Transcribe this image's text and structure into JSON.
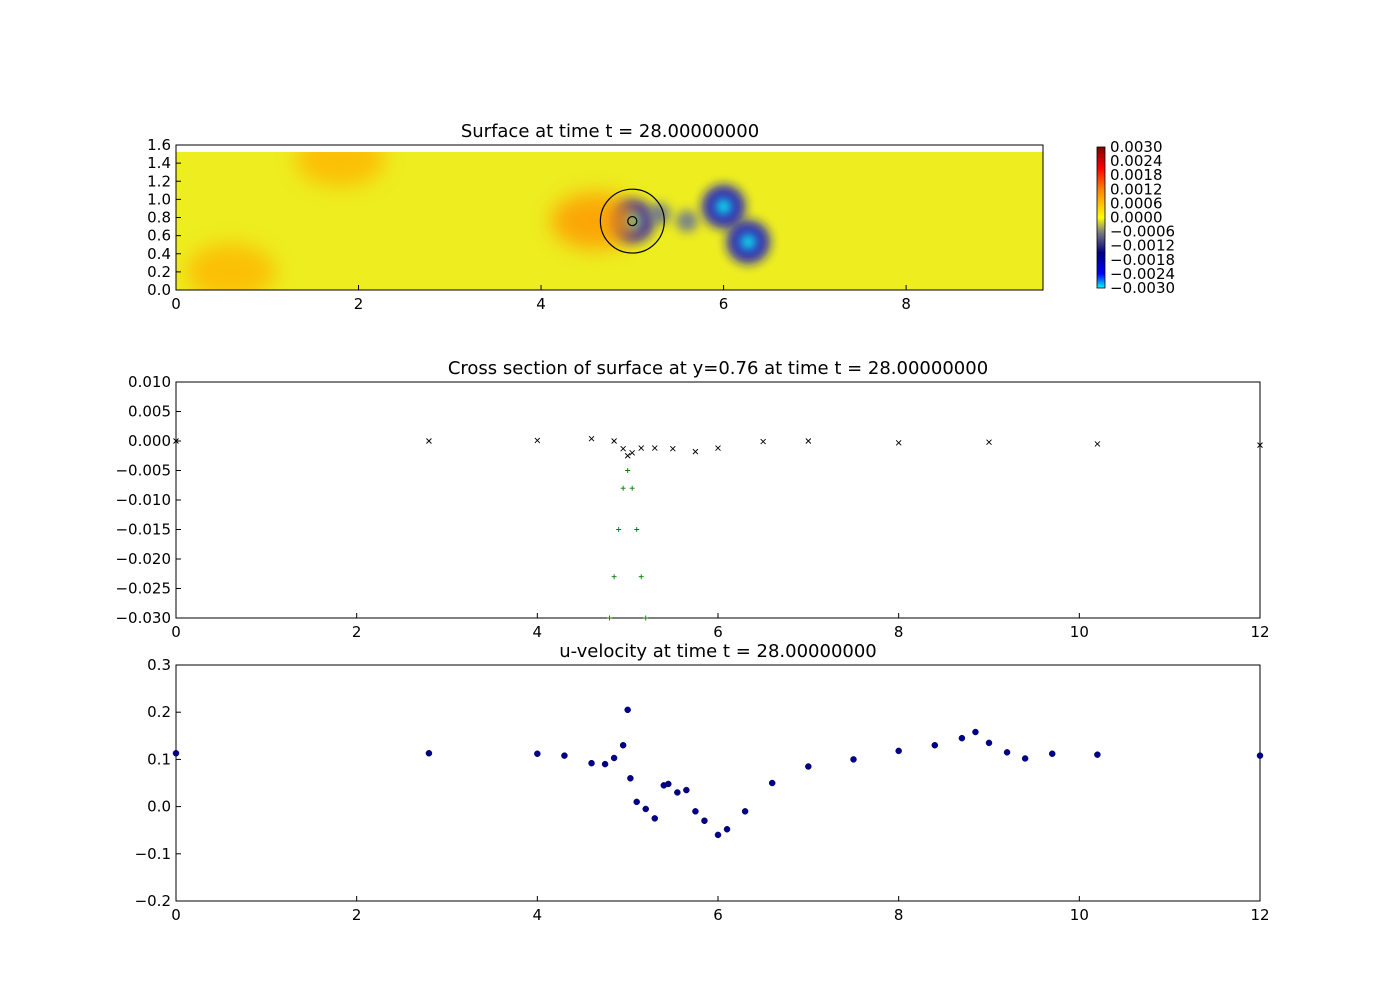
{
  "chart_data": [
    {
      "type": "heatmap",
      "title": "Surface at time t =    28.00000000",
      "xlabel": "",
      "ylabel": "",
      "xlim": [
        0,
        9.5
      ],
      "ylim": [
        0,
        1.6
      ],
      "data_extent_y": [
        0,
        1.52
      ],
      "xticks": [
        "0",
        "2",
        "4",
        "6",
        "8"
      ],
      "yticks": [
        "0.0",
        "0.2",
        "0.4",
        "0.6",
        "0.8",
        "1.0",
        "1.2",
        "1.4",
        "1.6"
      ],
      "color_range": [
        -0.003,
        0.003
      ],
      "colorbar_ticks": [
        "0.0030",
        "0.0024",
        "0.0018",
        "0.0012",
        "0.0006",
        "0.0000",
        "−0.0006",
        "−0.0012",
        "−0.0018",
        "−0.0024",
        "−0.0030"
      ],
      "features": [
        {
          "kind": "depression",
          "x": 6.0,
          "y": 0.92,
          "value": -0.003
        },
        {
          "kind": "depression",
          "x": 6.27,
          "y": 0.53,
          "value": -0.003
        },
        {
          "kind": "depression",
          "x": 5.0,
          "y": 0.76,
          "value": -0.003
        },
        {
          "kind": "depression",
          "x": 5.6,
          "y": 0.76,
          "value": -0.0015
        },
        {
          "kind": "depression",
          "x": 5.3,
          "y": 0.84,
          "value": -0.0012
        },
        {
          "kind": "elevation",
          "x": 4.6,
          "y": 0.76,
          "value": 0.001
        },
        {
          "kind": "elevation",
          "x": 1.8,
          "y": 1.45,
          "value": 0.0007
        },
        {
          "kind": "elevation",
          "x": 0.6,
          "y": 0.2,
          "value": 0.0007
        }
      ],
      "circles": [
        {
          "x": 5.0,
          "y": 0.76,
          "r": 0.35
        },
        {
          "x": 5.0,
          "y": 0.76,
          "r": 0.05
        }
      ]
    },
    {
      "type": "scatter",
      "title": "Cross section of surface at y=0.76 at time t =    28.00000000",
      "xlabel": "",
      "ylabel": "",
      "xlim": [
        0,
        12
      ],
      "ylim": [
        -0.03,
        0.01
      ],
      "xticks": [
        "0",
        "2",
        "4",
        "6",
        "8",
        "10",
        "12"
      ],
      "yticks": [
        "0.010",
        "0.005",
        "0.000",
        "−0.005",
        "−0.010",
        "−0.015",
        "−0.020",
        "−0.025",
        "−0.030"
      ],
      "series": [
        {
          "marker": "x",
          "color": "#000000",
          "x": [
            0,
            2.8,
            4.0,
            4.6,
            4.85,
            4.95,
            5.0,
            5.05,
            5.15,
            5.3,
            5.5,
            5.75,
            6.0,
            6.5,
            7.0,
            8.0,
            9.0,
            10.2,
            12.0
          ],
          "y": [
            0.0,
            0.0,
            0.0001,
            0.0004,
            0.0,
            -0.0013,
            -0.0025,
            -0.002,
            -0.0012,
            -0.0012,
            -0.0013,
            -0.0018,
            -0.0012,
            -0.0001,
            0.0,
            -0.0003,
            -0.0002,
            -0.0005,
            -0.0007
          ]
        },
        {
          "marker": "+",
          "color": "#008000",
          "x": [
            4.8,
            4.85,
            4.9,
            4.95,
            5.0,
            5.05,
            5.1,
            5.15,
            5.2
          ],
          "y": [
            -0.03,
            -0.023,
            -0.015,
            -0.008,
            -0.005,
            -0.008,
            -0.015,
            -0.023,
            -0.03
          ]
        }
      ]
    },
    {
      "type": "scatter",
      "title": "u-velocity at time t =    28.00000000",
      "xlabel": "",
      "ylabel": "",
      "xlim": [
        0,
        12
      ],
      "ylim": [
        -0.2,
        0.3
      ],
      "xticks": [
        "0",
        "2",
        "4",
        "6",
        "8",
        "10",
        "12"
      ],
      "yticks": [
        "0.3",
        "0.2",
        "0.1",
        "0.0",
        "−0.1",
        "−0.2"
      ],
      "series": [
        {
          "marker": "o",
          "color": "#00008b",
          "x": [
            0,
            2.8,
            4.0,
            4.3,
            4.6,
            4.75,
            4.85,
            4.95,
            5.0,
            5.03,
            5.1,
            5.2,
            5.3,
            5.4,
            5.45,
            5.55,
            5.65,
            5.75,
            5.85,
            6.0,
            6.1,
            6.3,
            6.6,
            7.0,
            7.5,
            8.0,
            8.4,
            8.7,
            8.85,
            9.0,
            9.2,
            9.4,
            9.7,
            10.2,
            12.0
          ],
          "y": [
            0.113,
            0.113,
            0.112,
            0.108,
            0.092,
            0.09,
            0.103,
            0.13,
            0.205,
            0.06,
            0.01,
            -0.005,
            -0.025,
            0.045,
            0.048,
            0.03,
            0.035,
            -0.01,
            -0.03,
            -0.06,
            -0.048,
            -0.01,
            0.05,
            0.085,
            0.1,
            0.118,
            0.13,
            0.145,
            0.158,
            0.135,
            0.115,
            0.102,
            0.112,
            0.11,
            0.108
          ]
        }
      ]
    }
  ]
}
